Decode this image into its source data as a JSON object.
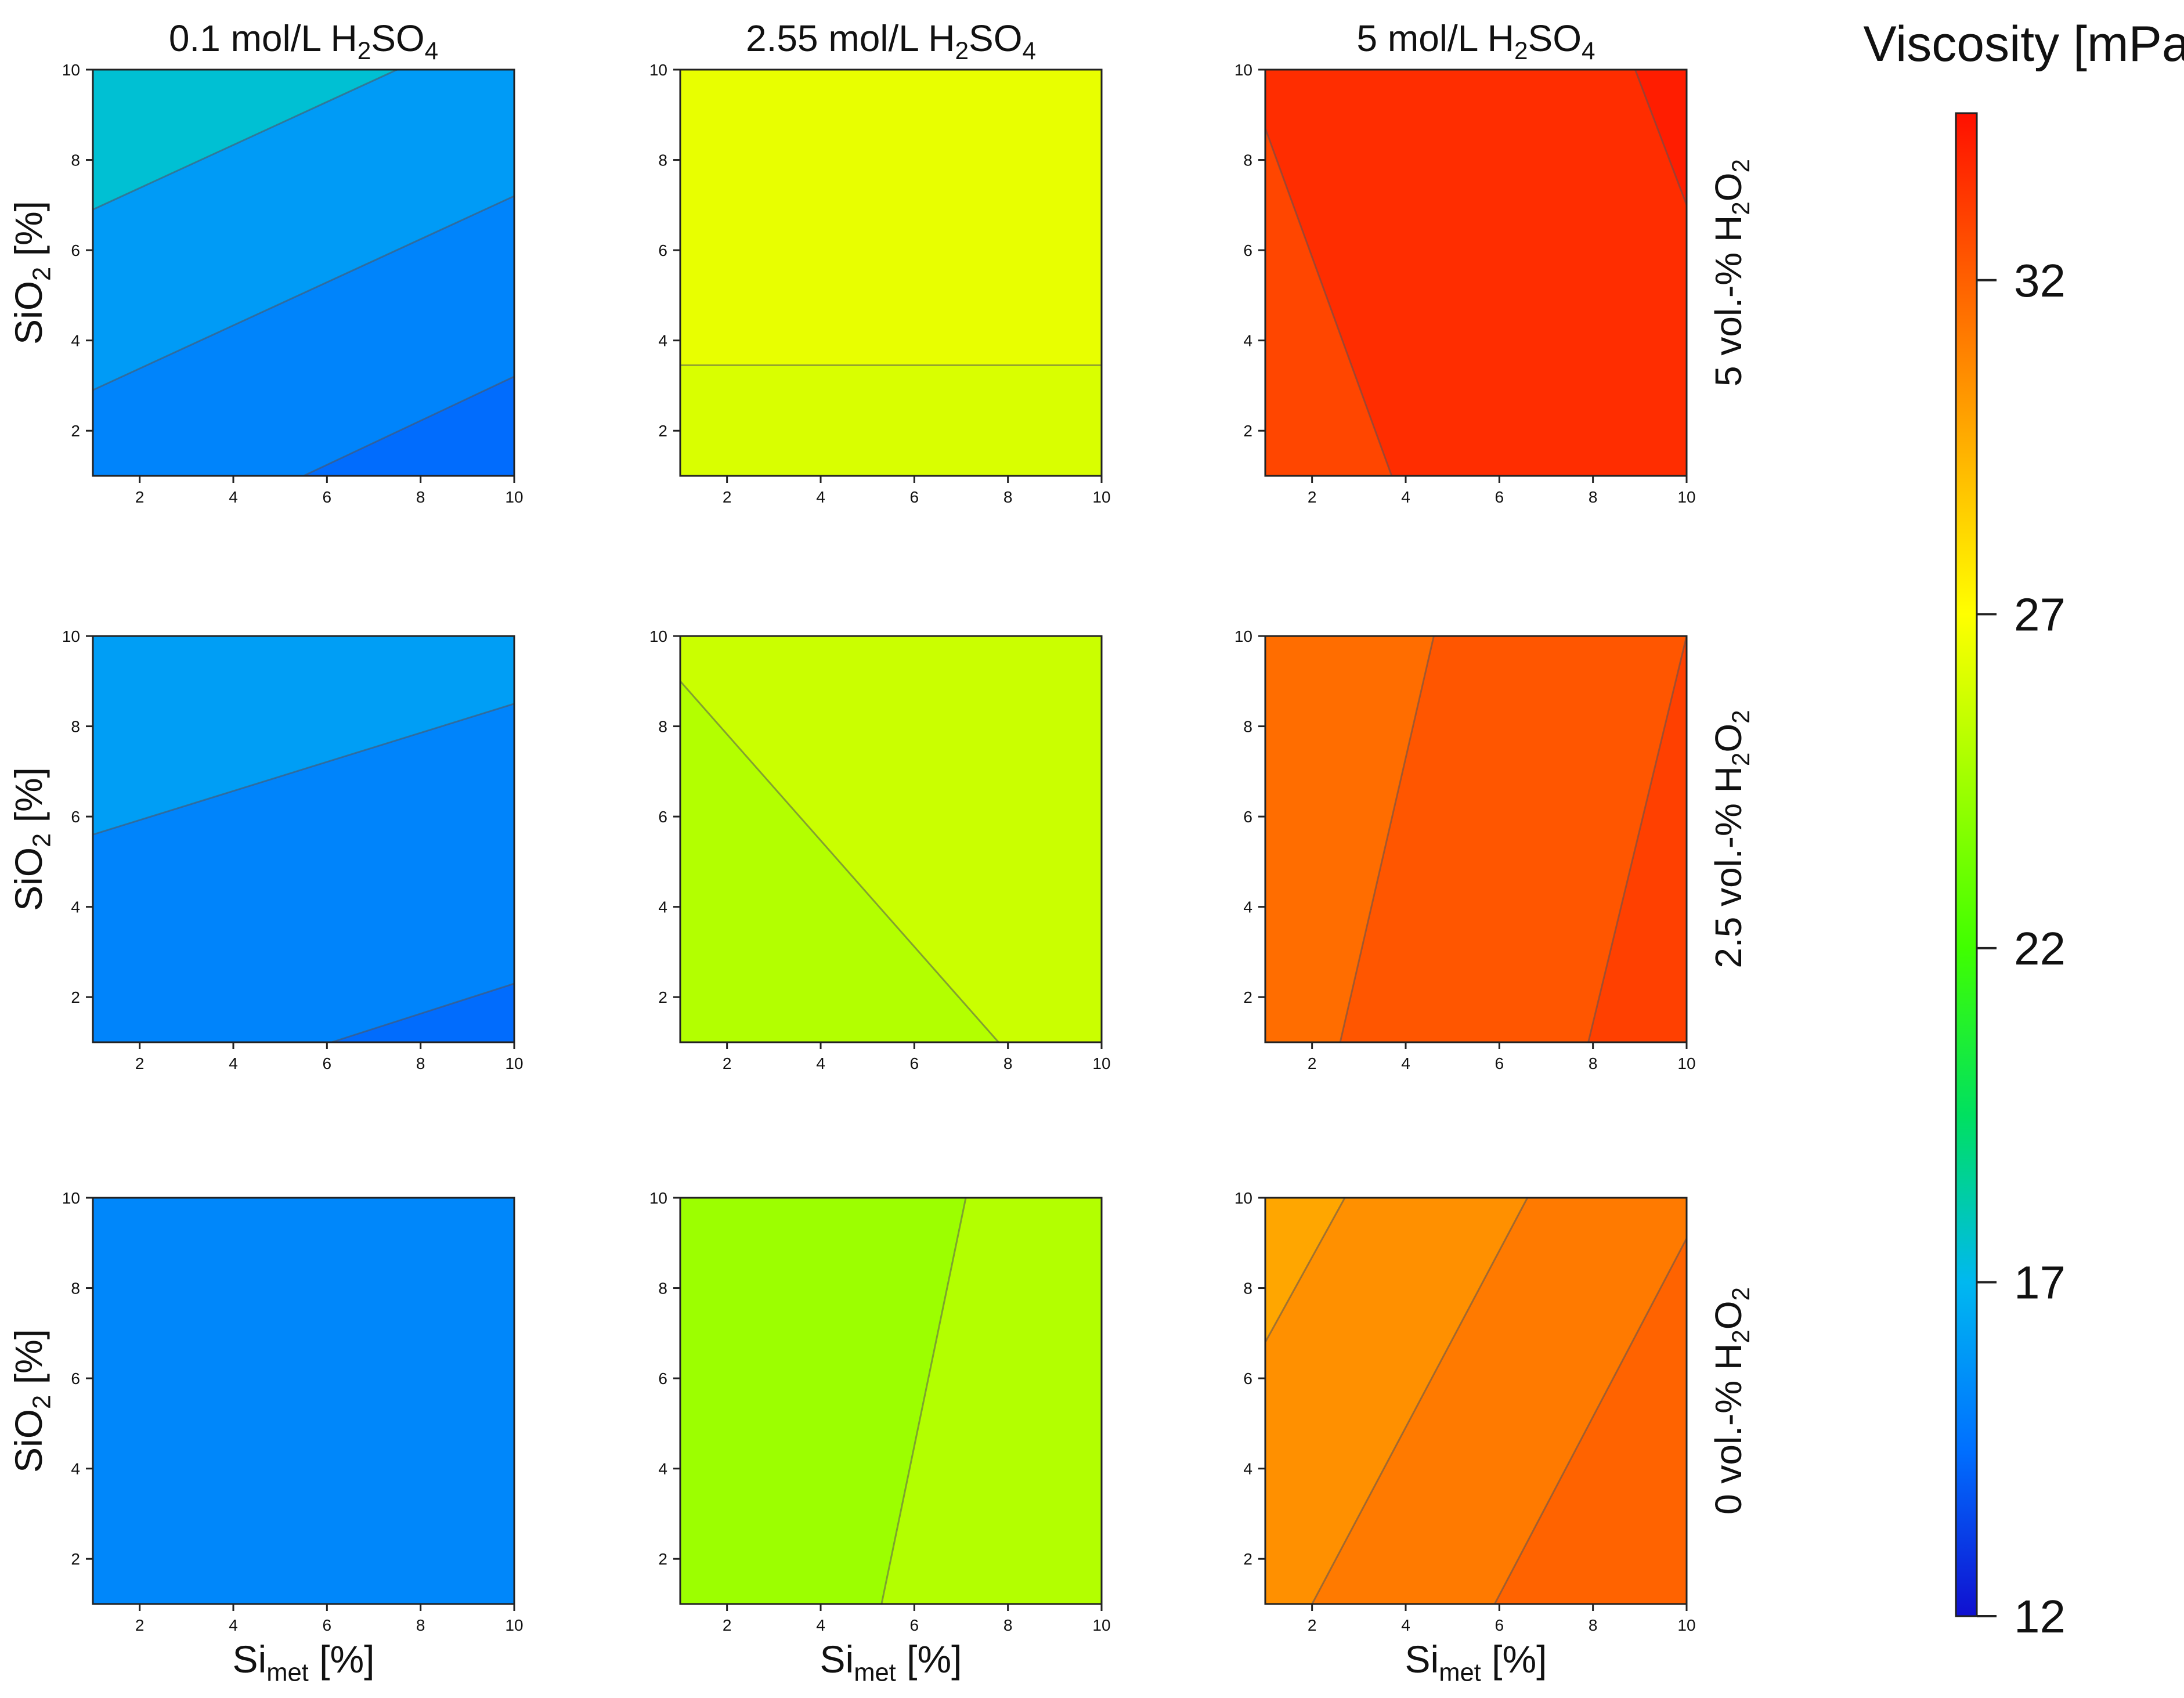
{
  "colorbar": {
    "title": "Viscosity [mPas]",
    "min": 12,
    "max": 34.5,
    "ticks": [
      "12",
      "17",
      "22",
      "27",
      "32"
    ],
    "colormap": [
      "#1010d0",
      "#0070ff",
      "#00b8f0",
      "#00e060",
      "#40ff00",
      "#a0ff00",
      "#ffff00",
      "#ffb000",
      "#ff6000",
      "#ff1000"
    ]
  },
  "columns": [
    {
      "lead": "0.1 mol/L H",
      "sub1": "2",
      "mid": "SO",
      "sub2": "4"
    },
    {
      "lead": "2.55 mol/L H",
      "sub1": "2",
      "mid": "SO",
      "sub2": "4"
    },
    {
      "lead": "5 mol/L H",
      "sub1": "2",
      "mid": "SO",
      "sub2": "4"
    }
  ],
  "rows": [
    {
      "lead": "5 vol.-% H",
      "sub1": "2",
      "mid": "O",
      "sub2": "2"
    },
    {
      "lead": "2.5 vol.-% H",
      "sub1": "2",
      "mid": "O",
      "sub2": "2"
    },
    {
      "lead": "0 vol.-% H",
      "sub1": "2",
      "mid": "O",
      "sub2": "2"
    }
  ],
  "axes": {
    "xlabel": {
      "main": "Si",
      "sub": "met",
      "unit": " [%]"
    },
    "ylabel": {
      "main": "SiO",
      "sub": "2",
      "unit": " [%]"
    },
    "x_ticks": [
      "2",
      "4",
      "6",
      "8",
      "10"
    ],
    "y_ticks": [
      "2",
      "4",
      "6",
      "8",
      "10"
    ]
  },
  "chart_data": {
    "type": "heatmap",
    "description_free": true,
    "xlim": [
      1,
      10
    ],
    "ylim": [
      1,
      10
    ],
    "panels": [
      {
        "row": 0,
        "col": 0,
        "regions": [
          {
            "polygon": [
              [
                1,
                10
              ],
              [
                7.5,
                10
              ],
              [
                1,
                6.9
              ]
            ],
            "level": 17.5
          },
          {
            "polygon": [
              [
                1,
                6.9
              ],
              [
                7.5,
                10
              ],
              [
                10,
                10
              ],
              [
                10,
                7.2
              ],
              [
                1,
                2.9
              ]
            ],
            "level": 16.0
          },
          {
            "polygon": [
              [
                1,
                2.9
              ],
              [
                10,
                7.2
              ],
              [
                10,
                3.2
              ],
              [
                5.5,
                1
              ],
              [
                1,
                1
              ]
            ],
            "level": 15.2
          },
          {
            "polygon": [
              [
                5.5,
                1
              ],
              [
                10,
                3.2
              ],
              [
                10,
                1
              ]
            ],
            "level": 14.4
          }
        ],
        "contours": [
          [
            [
              1,
              6.9
            ],
            [
              7.5,
              10
            ]
          ],
          [
            [
              1,
              2.9
            ],
            [
              10,
              7.2
            ]
          ],
          [
            [
              5.5,
              1
            ],
            [
              10,
              3.2
            ]
          ]
        ]
      },
      {
        "row": 0,
        "col": 1,
        "regions": [
          {
            "polygon": [
              [
                1,
                10
              ],
              [
                10,
                10
              ],
              [
                10,
                3.45
              ],
              [
                1,
                3.45
              ]
            ],
            "level": 26.4
          },
          {
            "polygon": [
              [
                1,
                3.45
              ],
              [
                10,
                3.45
              ],
              [
                10,
                1
              ],
              [
                1,
                1
              ]
            ],
            "level": 26.0
          }
        ],
        "contours": [
          [
            [
              1,
              3.45
            ],
            [
              10,
              3.45
            ]
          ]
        ]
      },
      {
        "row": 0,
        "col": 2,
        "regions": [
          {
            "polygon": [
              [
                1,
                10
              ],
              [
                1,
                8.7
              ],
              [
                3.7,
                1
              ],
              [
                1,
                1
              ]
            ],
            "level": 32.8
          },
          {
            "polygon": [
              [
                1,
                8.7
              ],
              [
                1,
                10
              ],
              [
                8.9,
                10
              ],
              [
                10,
                7.0
              ],
              [
                10,
                1
              ],
              [
                3.7,
                1
              ]
            ],
            "level": 33.6
          },
          {
            "polygon": [
              [
                8.9,
                10
              ],
              [
                10,
                10
              ],
              [
                10,
                7.0
              ]
            ],
            "level": 34.1
          }
        ],
        "contours": [
          [
            [
              1,
              8.7
            ],
            [
              3.7,
              1
            ]
          ],
          [
            [
              8.9,
              10
            ],
            [
              10,
              7.0
            ]
          ]
        ]
      },
      {
        "row": 1,
        "col": 0,
        "regions": [
          {
            "polygon": [
              [
                1,
                10
              ],
              [
                10,
                10
              ],
              [
                10,
                8.5
              ],
              [
                1,
                5.6
              ]
            ],
            "level": 16.1
          },
          {
            "polygon": [
              [
                1,
                5.6
              ],
              [
                10,
                8.5
              ],
              [
                10,
                2.3
              ],
              [
                6.1,
                1
              ],
              [
                1,
                1
              ]
            ],
            "level": 15.2
          },
          {
            "polygon": [
              [
                6.1,
                1
              ],
              [
                10,
                2.3
              ],
              [
                10,
                1
              ]
            ],
            "level": 14.4
          }
        ],
        "contours": [
          [
            [
              1,
              5.6
            ],
            [
              10,
              8.5
            ]
          ],
          [
            [
              6.1,
              1
            ],
            [
              10,
              2.3
            ]
          ]
        ]
      },
      {
        "row": 1,
        "col": 1,
        "regions": [
          {
            "polygon": [
              [
                1,
                10
              ],
              [
                10,
                10
              ],
              [
                10,
                1
              ],
              [
                7.8,
                1
              ],
              [
                1,
                9.0
              ]
            ],
            "level": 25.6
          },
          {
            "polygon": [
              [
                1,
                9.0
              ],
              [
                7.8,
                1
              ],
              [
                1,
                1
              ]
            ],
            "level": 25.0
          }
        ],
        "contours": [
          [
            [
              1,
              9.0
            ],
            [
              7.8,
              1
            ]
          ]
        ]
      },
      {
        "row": 1,
        "col": 2,
        "regions": [
          {
            "polygon": [
              [
                1,
                10
              ],
              [
                4.6,
                10
              ],
              [
                2.6,
                1
              ],
              [
                1,
                1
              ]
            ],
            "level": 31.6
          },
          {
            "polygon": [
              [
                4.6,
                10
              ],
              [
                10,
                10
              ],
              [
                7.9,
                1
              ],
              [
                2.6,
                1
              ]
            ],
            "level": 32.3
          },
          {
            "polygon": [
              [
                10,
                10
              ],
              [
                10,
                1
              ],
              [
                7.9,
                1
              ]
            ],
            "level": 33.0
          }
        ],
        "contours": [
          [
            [
              4.6,
              10
            ],
            [
              2.6,
              1
            ]
          ],
          [
            [
              10,
              10
            ],
            [
              7.9,
              1
            ]
          ]
        ]
      },
      {
        "row": 2,
        "col": 0,
        "regions": [
          {
            "polygon": [
              [
                1,
                10
              ],
              [
                10,
                10
              ],
              [
                10,
                1
              ],
              [
                1,
                1
              ]
            ],
            "level": 15.3
          }
        ],
        "contours": []
      },
      {
        "row": 2,
        "col": 1,
        "regions": [
          {
            "polygon": [
              [
                1,
                10
              ],
              [
                7.1,
                10
              ],
              [
                5.3,
                1
              ],
              [
                1,
                1
              ]
            ],
            "level": 24.4
          },
          {
            "polygon": [
              [
                7.1,
                10
              ],
              [
                10,
                10
              ],
              [
                10,
                1
              ],
              [
                5.3,
                1
              ]
            ],
            "level": 25.0
          }
        ],
        "contours": [
          [
            [
              7.1,
              10
            ],
            [
              5.3,
              1
            ]
          ]
        ]
      },
      {
        "row": 2,
        "col": 2,
        "regions": [
          {
            "polygon": [
              [
                1,
                10
              ],
              [
                2.7,
                10
              ],
              [
                1,
                6.8
              ]
            ],
            "level": 29.8
          },
          {
            "polygon": [
              [
                2.7,
                10
              ],
              [
                6.6,
                10
              ],
              [
                2.0,
                1
              ],
              [
                1,
                1
              ],
              [
                1,
                6.8
              ]
            ],
            "level": 30.5
          },
          {
            "polygon": [
              [
                6.6,
                10
              ],
              [
                10,
                10
              ],
              [
                10,
                9.1
              ],
              [
                5.9,
                1
              ],
              [
                2.0,
                1
              ]
            ],
            "level": 31.2
          },
          {
            "polygon": [
              [
                10,
                9.1
              ],
              [
                10,
                1
              ],
              [
                5.9,
                1
              ]
            ],
            "level": 31.9
          }
        ],
        "contours": [
          [
            [
              1,
              6.8
            ],
            [
              2.7,
              10
            ]
          ],
          [
            [
              2.0,
              1
            ],
            [
              6.6,
              10
            ]
          ],
          [
            [
              5.9,
              1
            ],
            [
              10,
              9.1
            ]
          ]
        ]
      }
    ]
  }
}
